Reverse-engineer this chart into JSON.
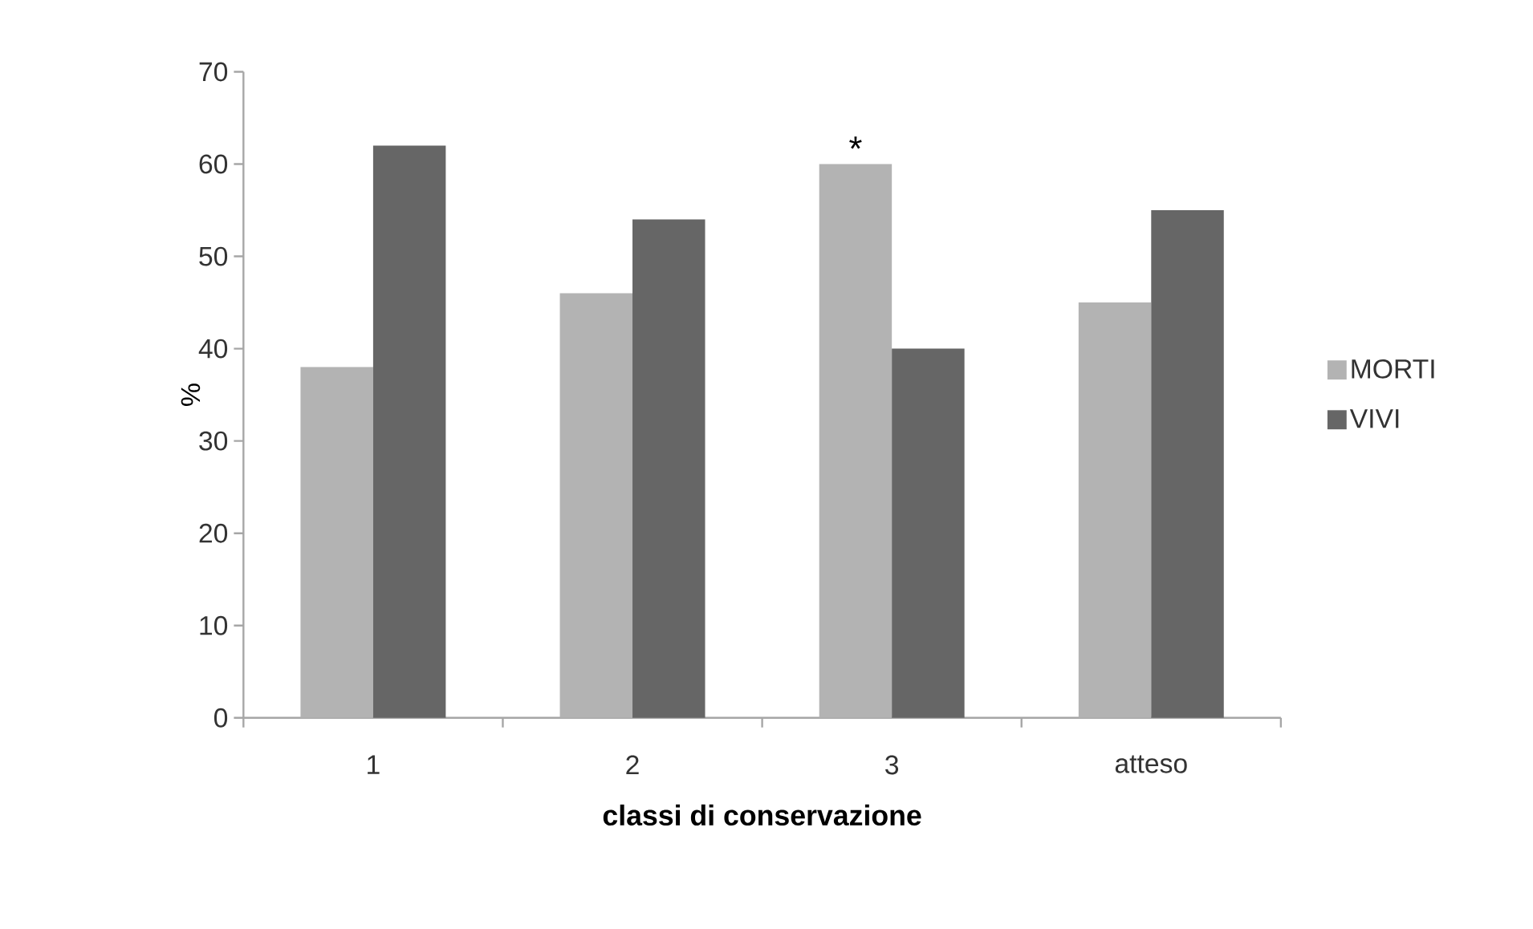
{
  "chart_data": {
    "type": "bar",
    "xlabel": "classi di conservazione",
    "ylabel": "%",
    "categories": [
      "1",
      "2",
      "3",
      "atteso"
    ],
    "series": [
      {
        "name": "MORTI",
        "color": "#b3b3b3",
        "values": [
          38,
          46,
          60,
          45
        ]
      },
      {
        "name": "VIVI",
        "color": "#666666",
        "values": [
          62,
          54,
          40,
          55
        ]
      }
    ],
    "ylim": [
      0,
      70
    ],
    "yticks": [
      0,
      10,
      20,
      30,
      40,
      50,
      60,
      70
    ],
    "grid": false,
    "legend": "right",
    "annotations": [
      {
        "text": "*",
        "x": "3",
        "y": 60
      }
    ]
  }
}
